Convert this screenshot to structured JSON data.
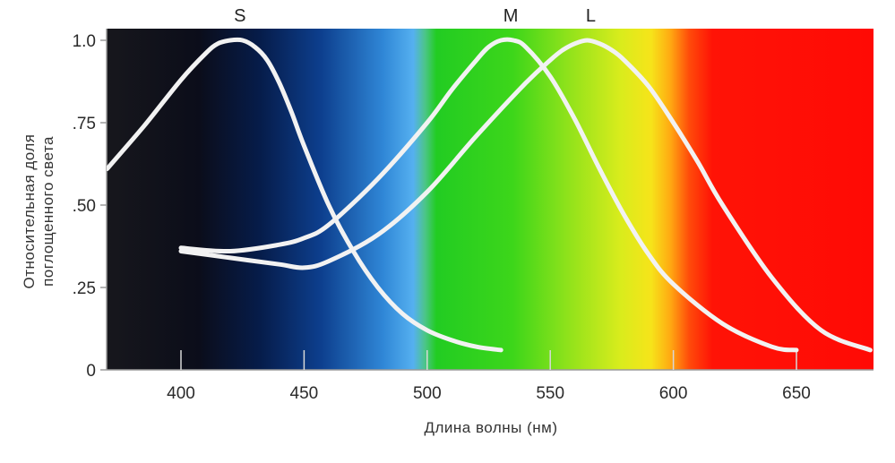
{
  "chart_data": {
    "type": "line",
    "xlabel": "Длина волны (нм)",
    "ylabel_lines": [
      "Относительная доля",
      "поглощенного света"
    ],
    "xlim": [
      370,
      680
    ],
    "ylim": [
      0,
      1.05
    ],
    "x_ticks": [
      400,
      450,
      500,
      550,
      600,
      650
    ],
    "x_tick_labels": [
      "400",
      "450",
      "500",
      "550",
      "600",
      "650"
    ],
    "y_ticks": [
      0,
      0.25,
      0.5,
      0.75,
      1.0
    ],
    "y_tick_labels": [
      "0",
      ".25",
      ".50",
      ".75",
      "1.0"
    ],
    "background": "visible spectrum gradient",
    "curve_color": "#f2f2f2",
    "series": [
      {
        "name": "S",
        "x": [
          370,
          385,
          400,
          410,
          415,
          420,
          425,
          430,
          435,
          440,
          445,
          450,
          460,
          470,
          480,
          490,
          500,
          510,
          520,
          530
        ],
        "y": [
          0.61,
          0.74,
          0.88,
          0.96,
          0.99,
          1.0,
          1.0,
          0.98,
          0.94,
          0.87,
          0.78,
          0.68,
          0.5,
          0.36,
          0.25,
          0.17,
          0.12,
          0.09,
          0.07,
          0.06
        ]
      },
      {
        "name": "M",
        "x": [
          400,
          420,
          440,
          450,
          460,
          480,
          500,
          510,
          520,
          525,
          530,
          535,
          540,
          550,
          560,
          570,
          580,
          590,
          600,
          620,
          640,
          650
        ],
        "y": [
          0.37,
          0.36,
          0.38,
          0.4,
          0.44,
          0.58,
          0.75,
          0.85,
          0.94,
          0.98,
          1.0,
          1.0,
          0.98,
          0.89,
          0.76,
          0.61,
          0.47,
          0.35,
          0.26,
          0.14,
          0.07,
          0.06
        ]
      },
      {
        "name": "L",
        "x": [
          400,
          420,
          440,
          450,
          460,
          480,
          500,
          520,
          540,
          550,
          555,
          560,
          565,
          570,
          575,
          580,
          590,
          600,
          610,
          620,
          640,
          660,
          680
        ],
        "y": [
          0.36,
          0.34,
          0.32,
          0.31,
          0.33,
          0.41,
          0.54,
          0.71,
          0.87,
          0.94,
          0.97,
          0.99,
          1.0,
          0.99,
          0.97,
          0.94,
          0.86,
          0.75,
          0.63,
          0.5,
          0.28,
          0.12,
          0.06
        ]
      }
    ]
  }
}
